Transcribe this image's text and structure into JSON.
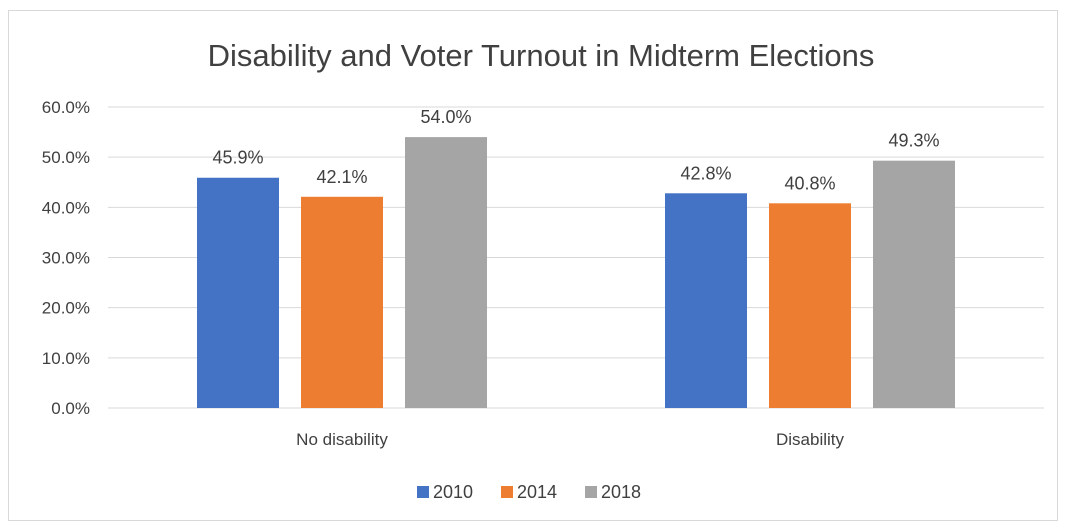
{
  "chart_data": {
    "type": "bar",
    "title": "Disability and Voter Turnout in Midterm Elections",
    "categories": [
      "No disability",
      "Disability"
    ],
    "series": [
      {
        "name": "2010",
        "values": [
          45.9,
          42.8
        ],
        "labels": [
          "45.9%",
          "42.8%"
        ],
        "color": "#4472c4"
      },
      {
        "name": "2014",
        "values": [
          42.1,
          40.8
        ],
        "labels": [
          "42.1%",
          "40.8%"
        ],
        "color": "#ed7d31"
      },
      {
        "name": "2018",
        "values": [
          54.0,
          49.3
        ],
        "labels": [
          "54.0%",
          "49.3%"
        ],
        "color": "#a5a5a5"
      }
    ],
    "ylim": [
      0,
      60
    ],
    "yticks": [
      "0.0%",
      "10.0%",
      "20.0%",
      "30.0%",
      "40.0%",
      "50.0%",
      "60.0%"
    ],
    "xlabel": "",
    "ylabel": "",
    "grid": true,
    "legend": "bottom"
  }
}
